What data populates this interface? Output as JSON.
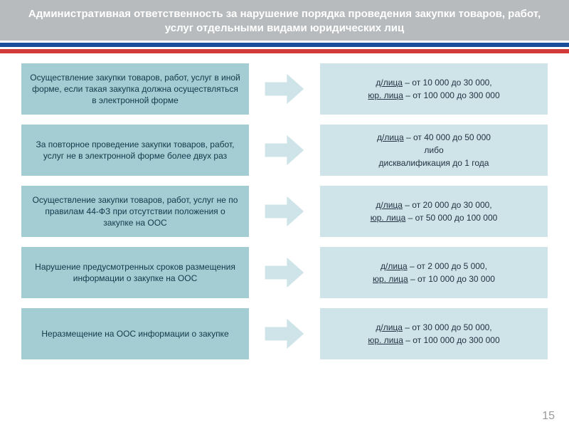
{
  "header": {
    "title": "Административная ответственность за нарушение порядка проведения закупки товаров, работ, услуг отдельными видами юридических лиц",
    "bg_color": "#b8bbbd",
    "text_color": "#ffffff"
  },
  "stripes": [
    {
      "color": "#ffffff",
      "height": 3
    },
    {
      "color": "#1b4f9c",
      "height": 6
    },
    {
      "color": "#ffffff",
      "height": 3
    },
    {
      "color": "#d23a3a",
      "height": 6
    }
  ],
  "box_style": {
    "left_bg": "#a4ccd3",
    "right_bg": "#cfe4e8",
    "text_color": "#103a4a",
    "right_text_color": "#223344",
    "font_size": 12
  },
  "arrow_style": {
    "fill": "#cfe4e8",
    "stroke": "#ffffff",
    "stroke_width": 2
  },
  "rows": [
    {
      "left": "Осуществление закупки товаров, работ, услуг в иной форме, если такая закупка должна осуществляться в электронной форме",
      "right": [
        {
          "u": "д/лица",
          "rest": " – от 10 000 до 30 000,"
        },
        {
          "u": "юр. лица",
          "rest": " – от 100 000 до 300 000"
        }
      ]
    },
    {
      "left": "За повторное проведение закупки товаров, работ, услуг не в электронной форме более двух раз",
      "right": [
        {
          "u": "д/лица",
          "rest": " – от 40 000 до 50 000"
        },
        {
          "plain": "либо"
        },
        {
          "plain": "дисквалификация до 1 года"
        }
      ]
    },
    {
      "left": "Осуществление закупки товаров, работ, услуг не по правилам 44-ФЗ при отсутствии положения о закупке на ООС",
      "right": [
        {
          "u": "д/лица",
          "rest": " – от 20 000 до 30 000,"
        },
        {
          "u": "юр. лица",
          "rest": " – от 50 000 до 100 000"
        }
      ]
    },
    {
      "left": "Нарушение предусмотренных сроков размещения информации о закупке на ООС",
      "right": [
        {
          "u": "д/лица",
          "rest": " – от 2 000 до 5 000,"
        },
        {
          "u": "юр. лица",
          "rest": " – от 10 000 до 30 000"
        }
      ]
    },
    {
      "left": "Неразмещение на ООС информации о закупке",
      "right": [
        {
          "u": "д/лица",
          "rest": " – от 30 000 до 50 000,"
        },
        {
          "u": "юр. лица",
          "rest": " – от 100 000 до 300 000"
        }
      ]
    }
  ],
  "page_number": "15"
}
